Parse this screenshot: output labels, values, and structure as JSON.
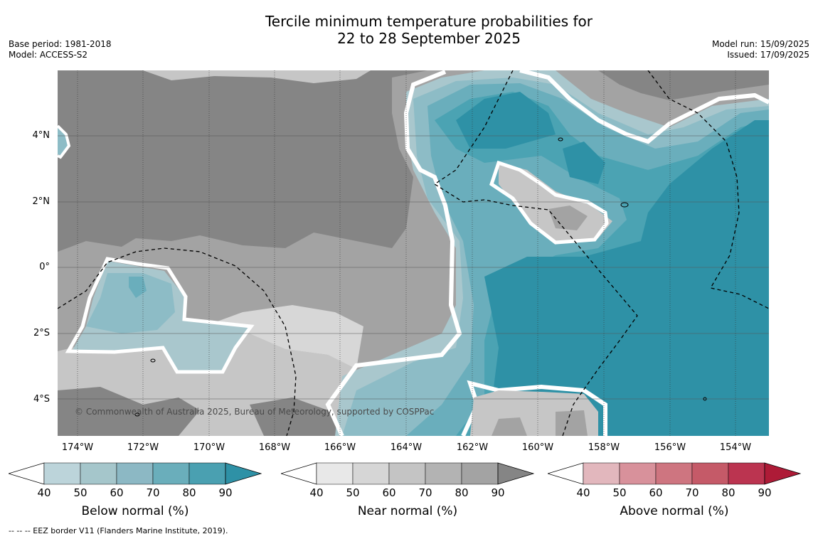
{
  "title": {
    "line1": "Tercile minimum temperature probabilities for",
    "line2": "22 to 28 September 2025"
  },
  "meta": {
    "base_period": "Base period: 1981-2018",
    "model": "Model: ACCESS-S2",
    "model_run": "Model run: 15/09/2025",
    "issued": "Issued: 17/09/2025"
  },
  "map": {
    "lat_labels": [
      "4°N",
      "2°N",
      "0°",
      "2°S",
      "4°S"
    ],
    "lon_labels": [
      "174°W",
      "172°W",
      "170°W",
      "168°W",
      "166°W",
      "164°W",
      "162°W",
      "160°W",
      "158°W",
      "156°W",
      "154°W"
    ],
    "copyright": "© Commonwealth of Australia 2025, Bureau of Meteorology, supported by COSPPac",
    "colors": {
      "near_normal_dark": "#858585",
      "near_normal_mid": "#a3a3a3",
      "near_normal_light": "#c6c6c6",
      "near_normal_lighter": "#d7d7d7",
      "below_normal_light": "#a9c7cd",
      "below_normal_mid": "#8dbcc6",
      "below_normal_70": "#6aaebc",
      "below_normal_80": "#4ba3b3",
      "below_normal_90": "#2e91a6"
    }
  },
  "colorbars": [
    {
      "label": "Below normal (%)",
      "ticks": [
        "40",
        "50",
        "60",
        "70",
        "80",
        "90"
      ],
      "colors": [
        "#bcd4da",
        "#a5c6cb",
        "#8cb8c4",
        "#6aaebb",
        "#4aa0b1",
        "#2e91a6"
      ],
      "arrow_color": "#2e91a6"
    },
    {
      "label": "Near normal (%)",
      "ticks": [
        "40",
        "50",
        "60",
        "70",
        "80",
        "90"
      ],
      "colors": [
        "#e8e8e8",
        "#d6d6d6",
        "#c4c4c4",
        "#b3b3b3",
        "#a3a3a3",
        "#858585"
      ],
      "arrow_color": "#858585"
    },
    {
      "label": "Above normal (%)",
      "ticks": [
        "40",
        "50",
        "60",
        "70",
        "80",
        "90"
      ],
      "colors": [
        "#e2b7bd",
        "#d8919b",
        "#ce7580",
        "#c55a68",
        "#bb3450",
        "#ae1b37"
      ],
      "arrow_color": "#ae1b37"
    }
  ],
  "footnote": "--  --  -- EEZ border V11 (Flanders Marine Institute, 2019)."
}
